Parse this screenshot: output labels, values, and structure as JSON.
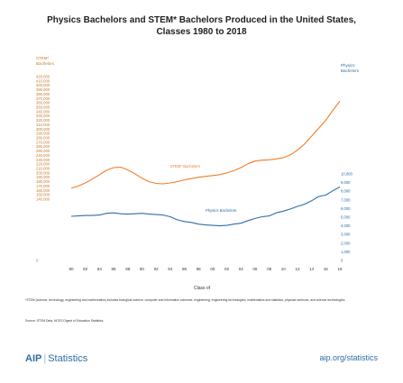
{
  "title_line1": "Physics Bachelors and STEM* Bachelors Produced in the United States,",
  "title_line2": "Classes 1980 to 2018",
  "footnote": "*STEM (science, technology, engineering and mathematics) includes biological science, computer and information sciences, engineering, engineering technologies, mathematics and statistics, physical sciences, and science technologies.",
  "source": "Source: STEM Data, NCES Digest of Education Statistics.",
  "brand_aip": "AIP",
  "brand_stats": "Statistics",
  "site": "aip.org/statistics",
  "colors": {
    "stem": "#f07d2a",
    "physics": "#2e6da4",
    "axis": "#c47a2f"
  },
  "chart_data": {
    "type": "line",
    "xlabel": "Class of",
    "left_axis_title": [
      "STEM*",
      "Bachelors"
    ],
    "right_axis_title": [
      "Physics",
      "Bachelors"
    ],
    "x_tick_labels": [
      "80",
      "82",
      "84",
      "86",
      "88",
      "90",
      "92",
      "94",
      "96",
      "98",
      "00",
      "02",
      "04",
      "06",
      "08",
      "10",
      "12",
      "14",
      "16",
      "18"
    ],
    "left_ticks": [
      0,
      140000,
      150000,
      160000,
      170000,
      180000,
      190000,
      200000,
      210000,
      220000,
      230000,
      240000,
      250000,
      260000,
      270000,
      280000,
      290000,
      300000,
      310000,
      320000,
      330000,
      340000,
      350000,
      360000,
      370000,
      380000,
      390000,
      400000,
      410000,
      420000
    ],
    "left_tick_labels": [
      "0",
      "140,000",
      "150,000",
      "160,000",
      "170,000",
      "180,000",
      "190,000",
      "200,000",
      "210,000",
      "220,000",
      "230,000",
      "240,000",
      "250,000",
      "260,000",
      "270,000",
      "280,000",
      "290,000",
      "300,000",
      "310,000",
      "320,000",
      "330,000",
      "340,000",
      "350,000",
      "360,000",
      "370,000",
      "380,000",
      "390,000",
      "400,000",
      "410,000",
      "420,000"
    ],
    "right_ticks": [
      0,
      1000,
      2000,
      3000,
      4000,
      5000,
      6000,
      7000,
      8000,
      9000,
      10000
    ],
    "right_tick_labels": [
      "0",
      "1,000",
      "2,000",
      "3,000",
      "4,000",
      "5,000",
      "6,000",
      "7,000",
      "8,000",
      "9,000",
      "10,000"
    ],
    "series": [
      {
        "name": "STEM* Bachelors",
        "axis": "left",
        "x": [
          1980,
          1981,
          1982,
          1983,
          1984,
          1985,
          1986,
          1987,
          1988,
          1989,
          1990,
          1991,
          1992,
          1993,
          1994,
          1995,
          1996,
          1997,
          1998,
          1999,
          2000,
          2001,
          2002,
          2003,
          2004,
          2005,
          2006,
          2007,
          2008,
          2009,
          2010,
          2011,
          2012,
          2013,
          2014,
          2015,
          2016,
          2017,
          2018
        ],
        "values": [
          165000,
          170000,
          177000,
          186000,
          196000,
          206000,
          212000,
          213000,
          207000,
          198000,
          188000,
          180000,
          176000,
          175000,
          177000,
          180000,
          184000,
          187000,
          190000,
          192000,
          194000,
          196000,
          200000,
          205000,
          212000,
          221000,
          227000,
          229000,
          230000,
          232000,
          235000,
          241000,
          252000,
          266000,
          284000,
          302000,
          320000,
          343000,
          364000
        ]
      },
      {
        "name": "Physics Bachelors",
        "axis": "right",
        "x": [
          1980,
          1981,
          1982,
          1983,
          1984,
          1985,
          1986,
          1987,
          1988,
          1989,
          1990,
          1991,
          1992,
          1993,
          1994,
          1995,
          1996,
          1997,
          1998,
          1999,
          2000,
          2001,
          2002,
          2003,
          2004,
          2005,
          2006,
          2007,
          2008,
          2009,
          2010,
          2011,
          2012,
          2013,
          2014,
          2015,
          2016,
          2017,
          2018
        ],
        "values": [
          5100,
          5150,
          5200,
          5200,
          5250,
          5450,
          5500,
          5400,
          5350,
          5400,
          5450,
          5350,
          5300,
          5250,
          5050,
          4700,
          4500,
          4400,
          4200,
          4100,
          4050,
          4000,
          4050,
          4200,
          4300,
          4600,
          4850,
          5050,
          5150,
          5500,
          5700,
          5950,
          6250,
          6500,
          6900,
          7400,
          7550,
          8050,
          8500
        ]
      }
    ]
  }
}
